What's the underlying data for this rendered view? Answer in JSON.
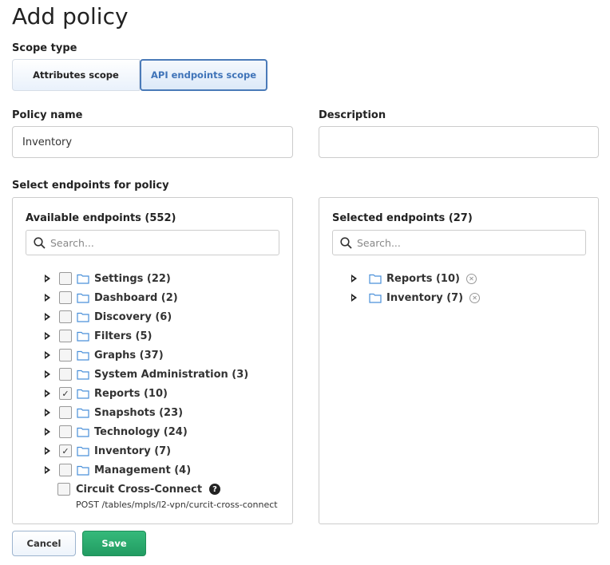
{
  "title": "Add policy",
  "scope": {
    "label": "Scope type",
    "options": [
      "Attributes scope",
      "API endpoints scope"
    ],
    "selected": "API endpoints scope"
  },
  "policy_name": {
    "label": "Policy name",
    "value": "Inventory"
  },
  "description": {
    "label": "Description",
    "value": ""
  },
  "endpoints_label": "Select endpoints for policy",
  "available": {
    "title": "Available endpoints (552)",
    "placeholder": "Search...",
    "items": [
      {
        "label": "Settings (22)",
        "checked": false
      },
      {
        "label": "Dashboard (2)",
        "checked": false
      },
      {
        "label": "Discovery (6)",
        "checked": false
      },
      {
        "label": "Filters (5)",
        "checked": false
      },
      {
        "label": "Graphs (37)",
        "checked": false
      },
      {
        "label": "System Administration (3)",
        "checked": false
      },
      {
        "label": "Reports (10)",
        "checked": true
      },
      {
        "label": "Snapshots (23)",
        "checked": false
      },
      {
        "label": "Technology (24)",
        "checked": false
      },
      {
        "label": "Inventory (7)",
        "checked": true
      },
      {
        "label": "Management (4)",
        "checked": false
      }
    ],
    "leaf": {
      "label": "Circuit Cross-Connect",
      "path": "POST /tables/mpls/l2-vpn/curcit-cross-connect",
      "checked": false
    }
  },
  "selected": {
    "title": "Selected endpoints (27)",
    "placeholder": "Search...",
    "items": [
      {
        "label": "Reports (10)"
      },
      {
        "label": "Inventory (7)"
      }
    ]
  },
  "buttons": {
    "cancel": "Cancel",
    "save": "Save"
  },
  "colors": {
    "accent": "#3f73b8",
    "save": "#27a66a",
    "folder": "#4a90d9"
  }
}
